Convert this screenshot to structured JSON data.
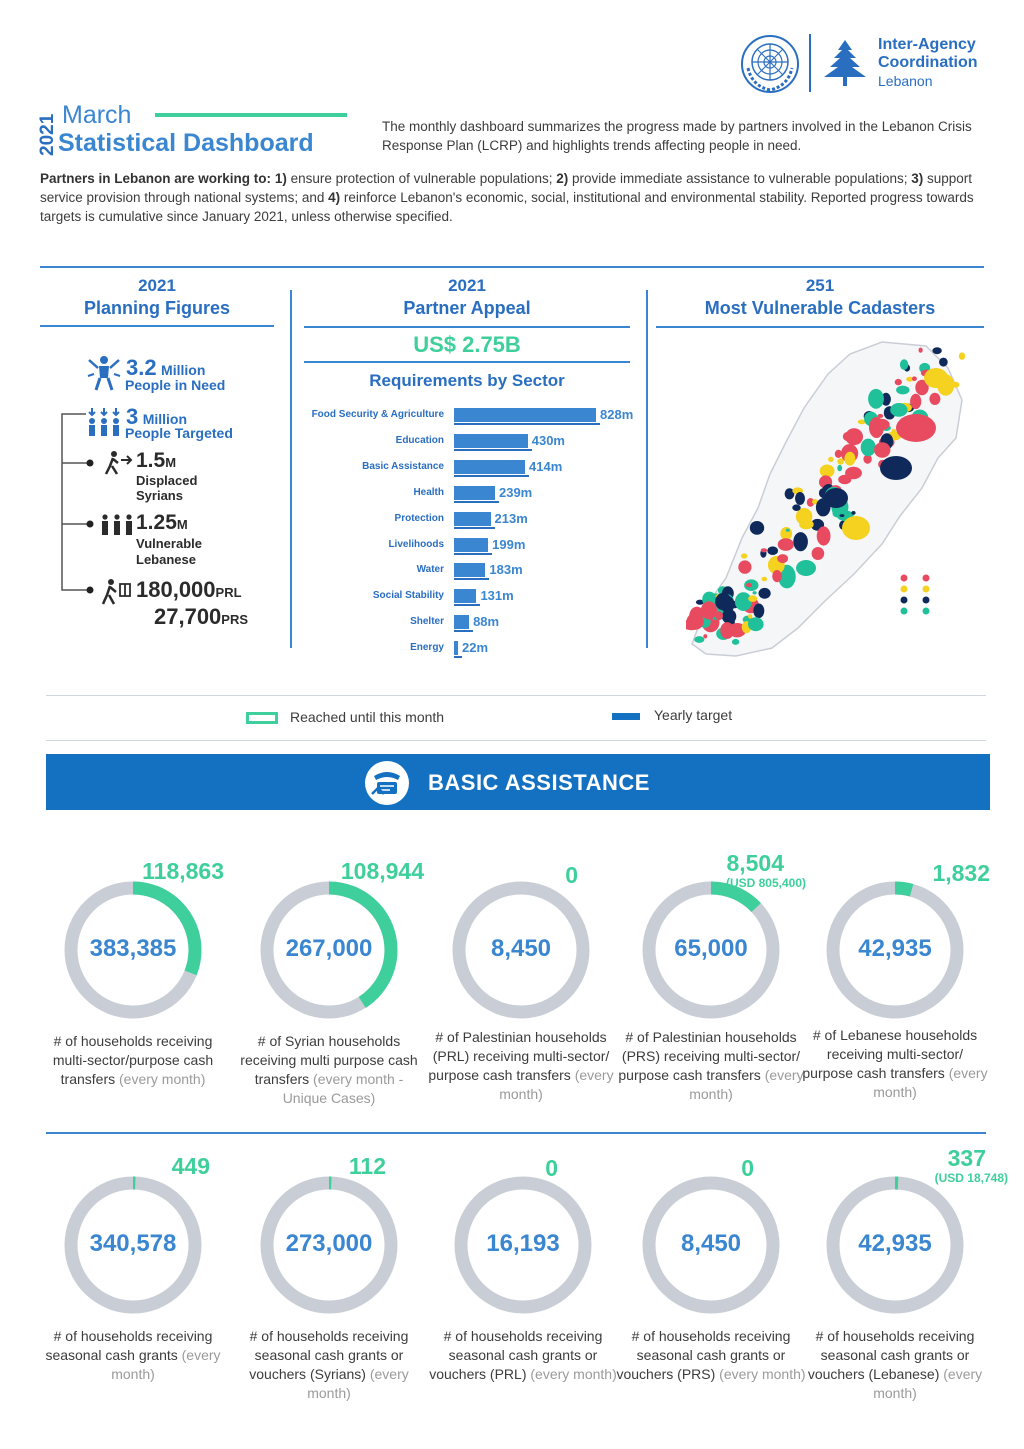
{
  "header": {
    "org_line1": "Inter-Agency",
    "org_line2": "Coordination",
    "org_line3": "Lebanon",
    "year": "2021",
    "month": "March",
    "title": "Statistical Dashboard",
    "intro": "The monthly dashboard summarizes the progress made by partners involved in the Lebanon Crisis Response Plan (LCRP) and highlights trends affecting people in need.",
    "partners_lead": "Partners in Lebanon are working to:",
    "p1_num": "1)",
    "p1": " ensure protection of vulnerable populations; ",
    "p2_num": "2)",
    "p2": " provide immediate assistance to vulnerable populations; ",
    "p3_num": "3)",
    "p3": " support service provision through national systems; and ",
    "p4_num": "4)",
    "p4": " reinforce Lebanon's economic, social, institutional and environmental stability. Reported progress towards targets is cumulative since January 2021, unless otherwise specified."
  },
  "planning": {
    "year": "2021",
    "title": "Planning Figures",
    "need_num": "3.2",
    "need_unit": "Million",
    "need_label": "People in Need",
    "targeted_num": "3",
    "targeted_unit": "Million",
    "targeted_label": "People Targeted",
    "syr_num": "1.5",
    "syr_unit": "M",
    "syr_label1": "Displaced",
    "syr_label2": "Syrians",
    "leb_num": "1.25",
    "leb_unit": "M",
    "leb_label1": "Vulnerable",
    "leb_label2": "Lebanese",
    "prl_num": "180,000",
    "prl_unit": "PRL",
    "prs_num": "27,700",
    "prs_unit": "PRS"
  },
  "appeal": {
    "year": "2021",
    "title": "Partner Appeal",
    "amount": "US$ 2.75B",
    "req_title": "Requirements by Sector"
  },
  "chart_data": {
    "type": "bar",
    "title": "Requirements by Sector",
    "orientation": "horizontal",
    "categories": [
      "Food Security & Agriculture",
      "Education",
      "Basic Assistance",
      "Health",
      "Protection",
      "Livelihoods",
      "Water",
      "Social Stability",
      "Shelter",
      "Energy"
    ],
    "values": [
      828,
      430,
      414,
      239,
      213,
      199,
      183,
      131,
      88,
      22
    ],
    "value_labels": [
      "828m",
      "430m",
      "414m",
      "239m",
      "213m",
      "199m",
      "183m",
      "131m",
      "88m",
      "22m"
    ],
    "unit": "m",
    "color": "#3a86d0"
  },
  "map": {
    "count": "251",
    "title": "Most Vulnerable Cadasters",
    "colors": [
      "#e84a5f",
      "#f5d21f",
      "#0f2a5a",
      "#20c09a"
    ]
  },
  "legend": {
    "reached": "Reached until this month",
    "target": "Yearly target",
    "reached_color": "#3ecf9c",
    "target_color": "#1470c0"
  },
  "sector": {
    "title": "BASIC ASSISTANCE"
  },
  "indicators_row1": [
    {
      "reached": "118,863",
      "target": "383,385",
      "progress": 0.31,
      "desc": "# of households receiving multi-sector/purpose cash transfers",
      "freq": "(every month)"
    },
    {
      "reached": "108,944",
      "target": "267,000",
      "progress": 0.41,
      "desc": "# of Syrian households receiving multi purpose cash transfers",
      "freq": "(every month - Unique Cases)"
    },
    {
      "reached": "0",
      "target": "8,450",
      "progress": 0.0,
      "desc": "# of Palestinian households (PRL) receiving multi-sector/ purpose cash transfers",
      "freq": "(every month)"
    },
    {
      "reached": "8,504",
      "usd": "(USD 805,400)",
      "target": "65,000",
      "progress": 0.13,
      "desc": "# of Palestinian households (PRS) receiving multi-sector/ purpose cash transfers",
      "freq": "(every month)"
    },
    {
      "reached": "1,832",
      "target": "42,935",
      "progress": 0.043,
      "desc": "# of Lebanese households receiving multi-sector/ purpose cash transfers",
      "freq": "(every month)"
    }
  ],
  "indicators_row2": [
    {
      "reached": "449",
      "target": "340,578",
      "progress": 0.0013,
      "desc": "# of households receiving seasonal cash grants",
      "freq": "(every month)"
    },
    {
      "reached": "112",
      "target": "273,000",
      "progress": 0.0004,
      "desc": "# of households receiving seasonal cash grants or vouchers (Syrians)",
      "freq": "(every month)"
    },
    {
      "reached": "0",
      "target": "16,193",
      "progress": 0.0,
      "desc": "# of households receiving seasonal cash grants or vouchers (PRL)",
      "freq": "(every month)"
    },
    {
      "reached": "0",
      "target": "8,450",
      "progress": 0.0,
      "desc": "# of households receiving seasonal cash grants or vouchers (PRS)",
      "freq": "(every month)"
    },
    {
      "reached": "337",
      "usd": "(USD 18,748)",
      "target": "42,935",
      "progress": 0.008,
      "desc": "# of households receiving seasonal cash grants or vouchers (Lebanese)",
      "freq": "(every month)"
    }
  ]
}
